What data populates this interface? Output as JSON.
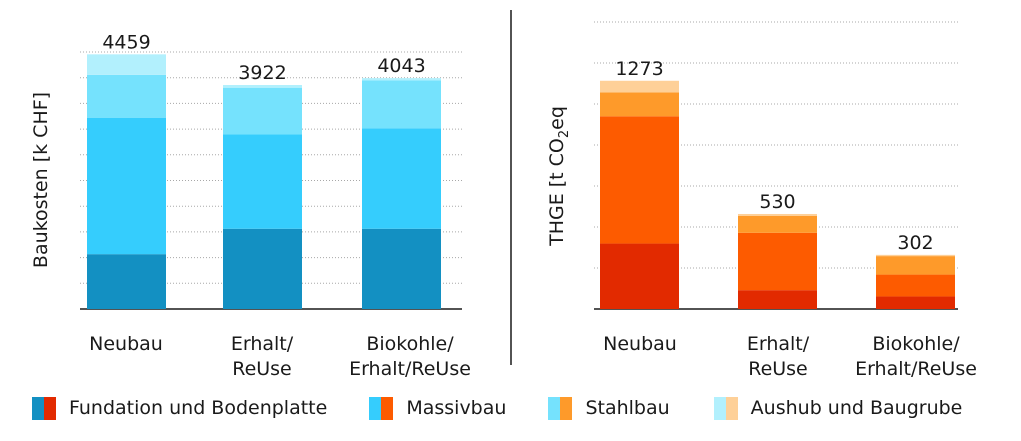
{
  "chart_data": [
    {
      "type": "bar",
      "stacked": true,
      "ylabel": "Baukosten [k CHF]",
      "categories": [
        "Neubau",
        "Erhalt/ ReUse",
        "Biokohle/ Erhalt/ReUse"
      ],
      "category_lines": [
        [
          "Neubau"
        ],
        [
          "Erhalt/",
          "ReUse"
        ],
        [
          "Biokohle/",
          "Erhalt/ReUse"
        ]
      ],
      "totals": [
        "4459",
        "3922",
        "4043"
      ],
      "ylim": [
        0,
        4500
      ],
      "grid": true,
      "series": [
        {
          "name": "Fundation und Bodenplatte",
          "color": "#1390c2",
          "values": [
            960,
            1405,
            1405
          ]
        },
        {
          "name": "Massivbau",
          "color": "#35cdfd",
          "values": [
            2390,
            1650,
            1760
          ]
        },
        {
          "name": "Stahlbau",
          "color": "#75e2fd",
          "values": [
            750,
            820,
            840
          ]
        },
        {
          "name": "Aushub und Baugrube",
          "color": "#b2f0fd",
          "values": [
            359,
            47,
            38
          ]
        }
      ]
    },
    {
      "type": "bar",
      "stacked": true,
      "ylabel": "THGE [t CO2eq",
      "ylabel_parts": {
        "pre": "THGE [t CO",
        "sub": "2",
        "post": "eq"
      },
      "categories": [
        "Neubau",
        "Erhalt/ ReUse",
        "Biokohle/ Erhalt/ReUse"
      ],
      "category_lines": [
        [
          "Neubau"
        ],
        [
          "Erhalt/",
          "ReUse"
        ],
        [
          "Biokohle/",
          "Erhalt/ReUse"
        ]
      ],
      "totals": [
        "1273",
        "530",
        "302"
      ],
      "ylim": [
        0,
        1400
      ],
      "grid": true,
      "series": [
        {
          "name": "Fundation und Bodenplatte",
          "color": "#e22a00",
          "values": [
            365,
            105,
            70
          ]
        },
        {
          "name": "Massivbau",
          "color": "#fd5b00",
          "values": [
            710,
            320,
            122
          ]
        },
        {
          "name": "Stahlbau",
          "color": "#fe9a2a",
          "values": [
            133,
            95,
            103
          ]
        },
        {
          "name": "Aushub und Baugrube",
          "color": "#fed098",
          "values": [
            65,
            10,
            7
          ]
        }
      ]
    }
  ],
  "legend": [
    {
      "label": "Fundation und Bodenplatte",
      "colors": [
        "#1390c2",
        "#e22a00"
      ]
    },
    {
      "label": "Massivbau",
      "colors": [
        "#35cdfd",
        "#fd5b00"
      ]
    },
    {
      "label": "Stahlbau",
      "colors": [
        "#75e2fd",
        "#fe9a2a"
      ]
    },
    {
      "label": "Aushub und Baugrube",
      "colors": [
        "#b2f0fd",
        "#fed098"
      ]
    }
  ]
}
